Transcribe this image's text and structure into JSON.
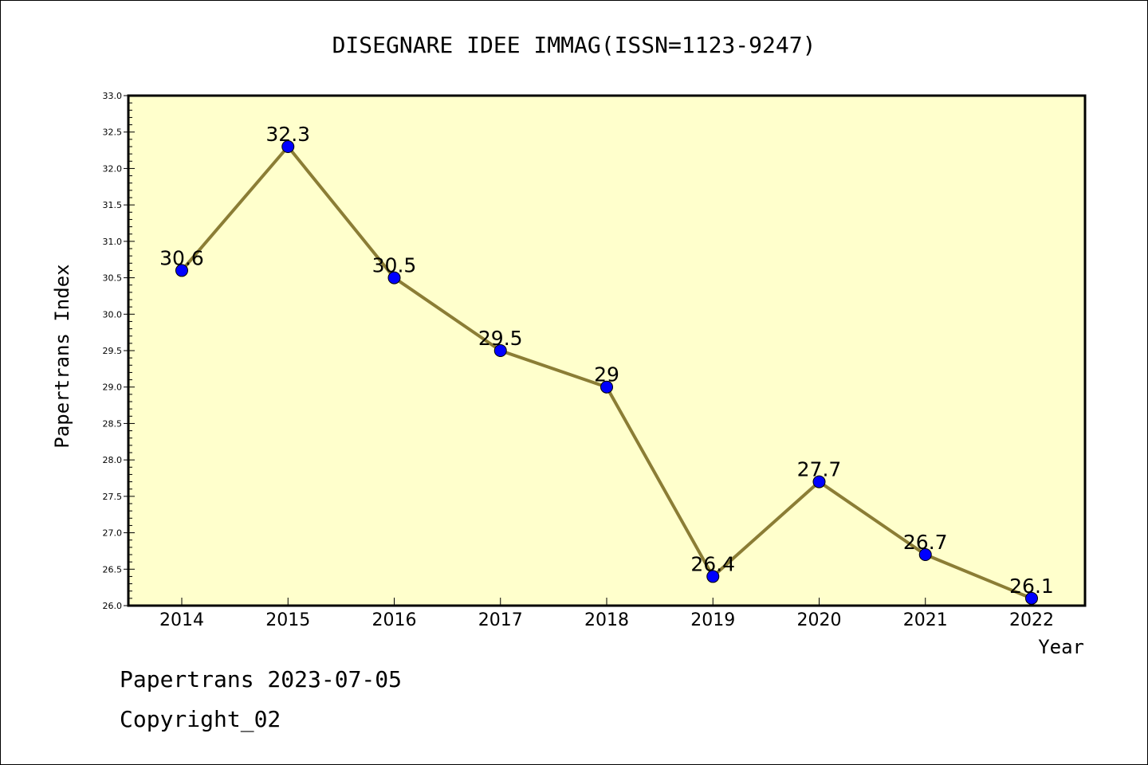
{
  "chart_data": {
    "type": "line",
    "title": "DISEGNARE IDEE IMMAG(ISSN=1123-9247)",
    "xlabel": "Year",
    "ylabel": "Papertrans Index",
    "categories": [
      "2014",
      "2015",
      "2016",
      "2017",
      "2018",
      "2019",
      "2020",
      "2021",
      "2022"
    ],
    "series": [
      {
        "values": [
          30.6,
          32.3,
          30.5,
          29.5,
          29.0,
          26.4,
          27.7,
          26.7,
          26.1
        ],
        "data_labels": [
          "30.6",
          "32.3",
          "30.5",
          "29.5",
          "29",
          "26.4",
          "27.7",
          "26.7",
          "26.1"
        ]
      }
    ],
    "ylim": [
      26.0,
      33.0
    ],
    "y_ticks": [
      "26.0",
      "26.5",
      "27.0",
      "27.5",
      "28.0",
      "28.5",
      "29.0",
      "29.5",
      "30.0",
      "30.5",
      "31.0",
      "31.5",
      "32.0",
      "32.5",
      "33.0"
    ],
    "grid": false,
    "colors": {
      "plot_background": "#ffffcc",
      "line": "#8b7d35",
      "marker": "#0000ff"
    }
  },
  "footer": {
    "source": "Papertrans 2023-07-05",
    "copyright": "Copyright_02"
  }
}
